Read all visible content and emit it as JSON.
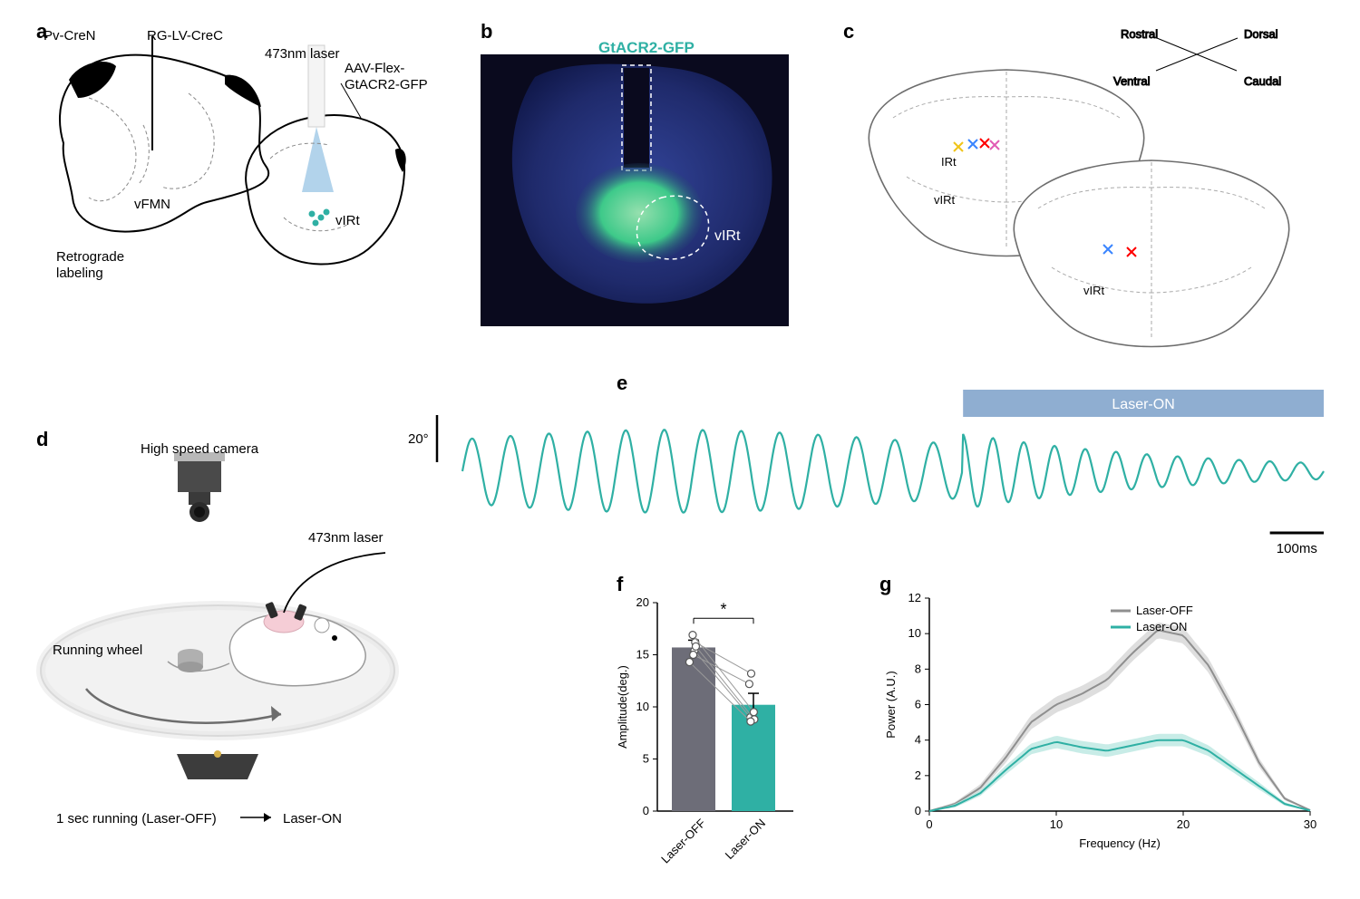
{
  "panelA": {
    "label": "a",
    "title_left": "Pv-CreN",
    "title_right": "RG-LV-CreC",
    "laser": "473nm laser",
    "construct": "AAV-Flex-\nGtACR2-GFP",
    "vFMN": "vFMN",
    "retro": "Retrograde\nlabeling",
    "vIRt": "vIRt",
    "colors": {
      "outline": "#000000",
      "cone": "#a5cbe8",
      "dots": "#2fb0a4"
    }
  },
  "panelB": {
    "label": "b",
    "title": "GtACR2-GFP",
    "vIRt": "vIRt",
    "colors": {
      "bg": "#0a0a1e",
      "tissue": "#1f2a6b",
      "green": "#3fd18a",
      "title": "#2fb0a4",
      "dash": "#ffffff"
    }
  },
  "panelC": {
    "label": "c",
    "axes": {
      "rostral": "Rostral",
      "caudal": "Caudal",
      "dorsal": "Dorsal",
      "ventral": "Ventral"
    },
    "IRt": "IRt",
    "vIRt": "vIRt",
    "cross_colors": [
      "#f0c419",
      "#ff0000",
      "#3a85ff",
      "#1fb06e",
      "#e15bb5"
    ],
    "outline_color": "#6d6d6d"
  },
  "panelD": {
    "label": "d",
    "camera": "High speed camera",
    "laser": "473nm laser",
    "wheel": "Running wheel",
    "protocol_left": "1 sec running (Laser-OFF)",
    "protocol_right": "Laser-ON",
    "colors": {
      "wheel": "#f2f2f2",
      "wheel_edge": "#cfcfcf",
      "camera_body": "#4a4a4a",
      "camera_light": "#b8b8b8",
      "mouse": "#ffffff",
      "mouse_line": "#9a9a9a",
      "base": "#3c3c3c",
      "arrow": "#6d6d6d",
      "head_cap": "#f5cdd6"
    }
  },
  "panelE": {
    "label": "e",
    "laser_on": "Laser-ON",
    "scale_y": "20°",
    "scale_x": "100ms",
    "colors": {
      "trace": "#2fb0a4",
      "laser_bar": "#8faed1",
      "text": "#000000",
      "scale": "#000000"
    },
    "pre_amp_deg": 16,
    "post_amp_deg": 5,
    "freq_hz_pre": 14,
    "trace_duration_ms": 1600,
    "laser_on_start_ms": 930
  },
  "panelF": {
    "label": "f",
    "ylabel": "Amplitude(deg.)",
    "xcats": [
      "Laser-OFF",
      "Laser-ON"
    ],
    "yticks": [
      0,
      5,
      10,
      15,
      20
    ],
    "ylim": [
      0,
      20
    ],
    "bars": {
      "off": {
        "mean": 15.7,
        "color": "#6d6d78"
      },
      "on": {
        "mean": 10.2,
        "color": "#2fb0a4"
      }
    },
    "err": {
      "off_se": 0.7,
      "on_se": 1.1
    },
    "paired": [
      [
        16.2,
        13.2
      ],
      [
        15.4,
        9.0
      ],
      [
        15.8,
        8.8
      ],
      [
        15.0,
        12.2
      ],
      [
        14.3,
        8.6
      ],
      [
        16.9,
        9.5
      ]
    ],
    "sig": "*",
    "axis_fontsize": 13,
    "colors": {
      "axis": "#000000",
      "point_stroke": "#555",
      "line": "#9a9a9a"
    }
  },
  "panelG": {
    "label": "g",
    "xlabel": "Frequency (Hz)",
    "ylabel": "Power (A.U.)",
    "xlim": [
      0,
      30
    ],
    "xticks": [
      0,
      10,
      20,
      30
    ],
    "ylim": [
      0,
      12
    ],
    "yticks": [
      0,
      2,
      4,
      6,
      8,
      10,
      12
    ],
    "legend": {
      "off": "Laser-OFF",
      "on": "Laser-ON"
    },
    "series": {
      "off": {
        "color": "#8f8f8f",
        "fill": "#d3d3d3",
        "x": [
          0,
          2,
          4,
          6,
          8,
          10,
          12,
          14,
          16,
          18,
          20,
          22,
          24,
          26,
          28,
          30
        ],
        "y": [
          0,
          0.4,
          1.3,
          3.0,
          5.0,
          6.0,
          6.6,
          7.4,
          8.9,
          10.2,
          9.9,
          8.2,
          5.6,
          2.7,
          0.7,
          0.05
        ],
        "se": [
          0,
          0.1,
          0.2,
          0.3,
          0.4,
          0.45,
          0.45,
          0.45,
          0.45,
          0.45,
          0.45,
          0.4,
          0.35,
          0.25,
          0.1,
          0.02
        ]
      },
      "on": {
        "color": "#2fb0a4",
        "fill": "#b5e6df",
        "x": [
          0,
          2,
          4,
          6,
          8,
          10,
          12,
          14,
          16,
          18,
          20,
          22,
          24,
          26,
          28,
          30
        ],
        "y": [
          0,
          0.3,
          1.0,
          2.3,
          3.5,
          3.9,
          3.6,
          3.4,
          3.7,
          4.0,
          4.0,
          3.4,
          2.4,
          1.4,
          0.4,
          0.03
        ],
        "se": [
          0,
          0.1,
          0.15,
          0.25,
          0.3,
          0.35,
          0.35,
          0.35,
          0.35,
          0.35,
          0.35,
          0.3,
          0.25,
          0.2,
          0.1,
          0.02
        ]
      }
    },
    "axis_fontsize": 13
  }
}
